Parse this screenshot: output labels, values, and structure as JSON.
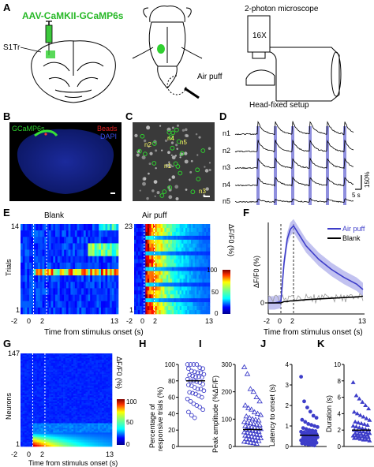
{
  "panels": {
    "A": {
      "letter": "A",
      "virus_label": "AAV-CaMKII-GCaMP6s",
      "region_label": "S1Tr",
      "air_puff_label": "Air puff",
      "microscope_label": "2-photon microscope",
      "objective_label": "16X",
      "setup_label": "Head-fixed setup"
    },
    "B": {
      "letter": "B",
      "legend_gcamp": "GCaMP6s",
      "legend_beads": "Beads",
      "legend_dapi": "DAPI"
    },
    "C": {
      "letter": "C",
      "neuron_labels": [
        "n4",
        "n2",
        "n5",
        "n1",
        "n3"
      ]
    },
    "D": {
      "letter": "D",
      "rows": [
        "n1",
        "n2",
        "n3",
        "n4",
        "n5"
      ],
      "scale_y": "150%",
      "scale_x": "5 s"
    },
    "E": {
      "letter": "E",
      "blank_title": "Blank",
      "air_title": "Air puff",
      "blank_trials_max": "14",
      "air_trials_max": "23",
      "y_min": "1",
      "ylabel": "Trials",
      "xlabel": "Time from stimulus onset (s)",
      "x_ticks": [
        "-2",
        "0",
        "2",
        "13"
      ],
      "colorbar_label": "ΔF/F0 (%)",
      "colorbar_ticks": [
        "100",
        "50",
        "0"
      ]
    },
    "F": {
      "letter": "F",
      "legend_air": "Air puff",
      "legend_blank": "Blank",
      "ylabel": "ΔF/F0 (%)",
      "xlabel": "Time from stimulus onset (s)",
      "x_ticks": [
        "-2",
        "0",
        "2",
        "13"
      ]
    },
    "G": {
      "letter": "G",
      "y_max": "147",
      "y_min": "1",
      "ylabel": "Neurons",
      "xlabel": "Time from stimulus onset (s)",
      "x_ticks": [
        "-2",
        "0",
        "2",
        "13"
      ],
      "colorbar_label": "ΔF/F0 (%)",
      "colorbar_ticks": [
        "100",
        "50",
        "0"
      ]
    },
    "H": {
      "letter": "H",
      "ylabel": "Percentage of responsive trials (%)",
      "y_ticks": [
        "0",
        "20",
        "40",
        "60",
        "80",
        "100"
      ]
    },
    "I": {
      "letter": "I",
      "ylabel": "Peak amplitude (%ΔF/F)",
      "y_ticks": [
        "0",
        "100",
        "200",
        "300"
      ]
    },
    "J": {
      "letter": "J",
      "ylabel": "Latency to onset (s)",
      "y_ticks": [
        "0",
        "1",
        "2",
        "3",
        "4"
      ]
    },
    "K": {
      "letter": "K",
      "ylabel": "Duration (s)",
      "y_ticks": [
        "0",
        "2",
        "4",
        "6",
        "8",
        "10"
      ]
    }
  },
  "colors": {
    "air_puff": "#3d3dc9",
    "blank": "#000000",
    "gcamp": "#2fd02f",
    "beads": "#e02020",
    "dapi": "#2a3ee0",
    "stim_bar": "#7b7bd8"
  },
  "chart_data": [
    {
      "type": "line",
      "panel": "F",
      "x": [
        -2,
        -1,
        0,
        0.5,
        1,
        1.5,
        2,
        3,
        4,
        6,
        8,
        10,
        12,
        13
      ],
      "series": [
        {
          "name": "Air puff",
          "values": [
            0,
            0,
            2,
            60,
            95,
            110,
            115,
            100,
            85,
            65,
            50,
            38,
            28,
            20
          ]
        },
        {
          "name": "Blank",
          "values": [
            0,
            0,
            0,
            2,
            2,
            3,
            3,
            4,
            5,
            6,
            7,
            8,
            9,
            10
          ]
        }
      ],
      "xlim": [
        -2,
        13
      ]
    },
    {
      "type": "scatter",
      "panel": "H",
      "ylim": [
        0,
        100
      ],
      "mean": 80,
      "values": [
        100,
        100,
        100,
        100,
        96,
        95,
        95,
        92,
        91,
        90,
        90,
        88,
        87,
        86,
        85,
        85,
        84,
        82,
        80,
        80,
        79,
        78,
        76,
        75,
        74,
        72,
        70,
        70,
        68,
        66,
        65,
        64,
        62,
        60,
        58,
        55,
        52,
        50,
        48,
        45,
        42,
        38,
        35
      ]
    },
    {
      "type": "scatter",
      "panel": "I",
      "ylim": [
        0,
        300
      ],
      "mean": 62,
      "values": [
        290,
        265,
        210,
        200,
        180,
        165,
        150,
        140,
        135,
        125,
        120,
        115,
        110,
        105,
        100,
        98,
        95,
        90,
        88,
        85,
        82,
        80,
        78,
        75,
        72,
        70,
        68,
        66,
        64,
        62,
        60,
        58,
        56,
        54,
        52,
        50,
        48,
        46,
        44,
        42,
        40,
        38,
        36,
        34,
        32,
        30,
        28,
        26,
        24,
        22,
        20,
        18,
        16,
        14,
        12,
        10
      ]
    },
    {
      "type": "scatter",
      "panel": "J",
      "ylim": [
        0,
        4
      ],
      "mean": 0.55,
      "values": [
        3.4,
        2.2,
        1.9,
        1.7,
        1.5,
        1.4,
        1.3,
        1.2,
        1.1,
        1.05,
        1.0,
        0.95,
        0.9,
        0.85,
        0.8,
        0.78,
        0.75,
        0.72,
        0.7,
        0.68,
        0.65,
        0.62,
        0.6,
        0.58,
        0.55,
        0.52,
        0.5,
        0.48,
        0.45,
        0.42,
        0.4,
        0.38,
        0.35,
        0.32,
        0.3,
        0.28,
        0.25,
        0.22,
        0.2,
        0.18,
        0.15,
        0.12,
        0.1,
        0.08,
        0.05
      ]
    },
    {
      "type": "scatter",
      "panel": "K",
      "ylim": [
        0,
        10
      ],
      "mean": 2.0,
      "values": [
        7.8,
        6.2,
        5.8,
        5.4,
        5.0,
        4.6,
        4.2,
        4.0,
        3.8,
        3.6,
        3.4,
        3.2,
        3.0,
        2.9,
        2.8,
        2.7,
        2.6,
        2.5,
        2.4,
        2.3,
        2.2,
        2.1,
        2.0,
        2.0,
        1.9,
        1.8,
        1.8,
        1.7,
        1.6,
        1.6,
        1.5,
        1.5,
        1.4,
        1.4,
        1.3,
        1.3,
        1.2,
        1.2,
        1.1,
        1.1,
        1.0,
        1.0,
        0.9,
        0.8,
        0.8,
        0.7
      ]
    }
  ]
}
